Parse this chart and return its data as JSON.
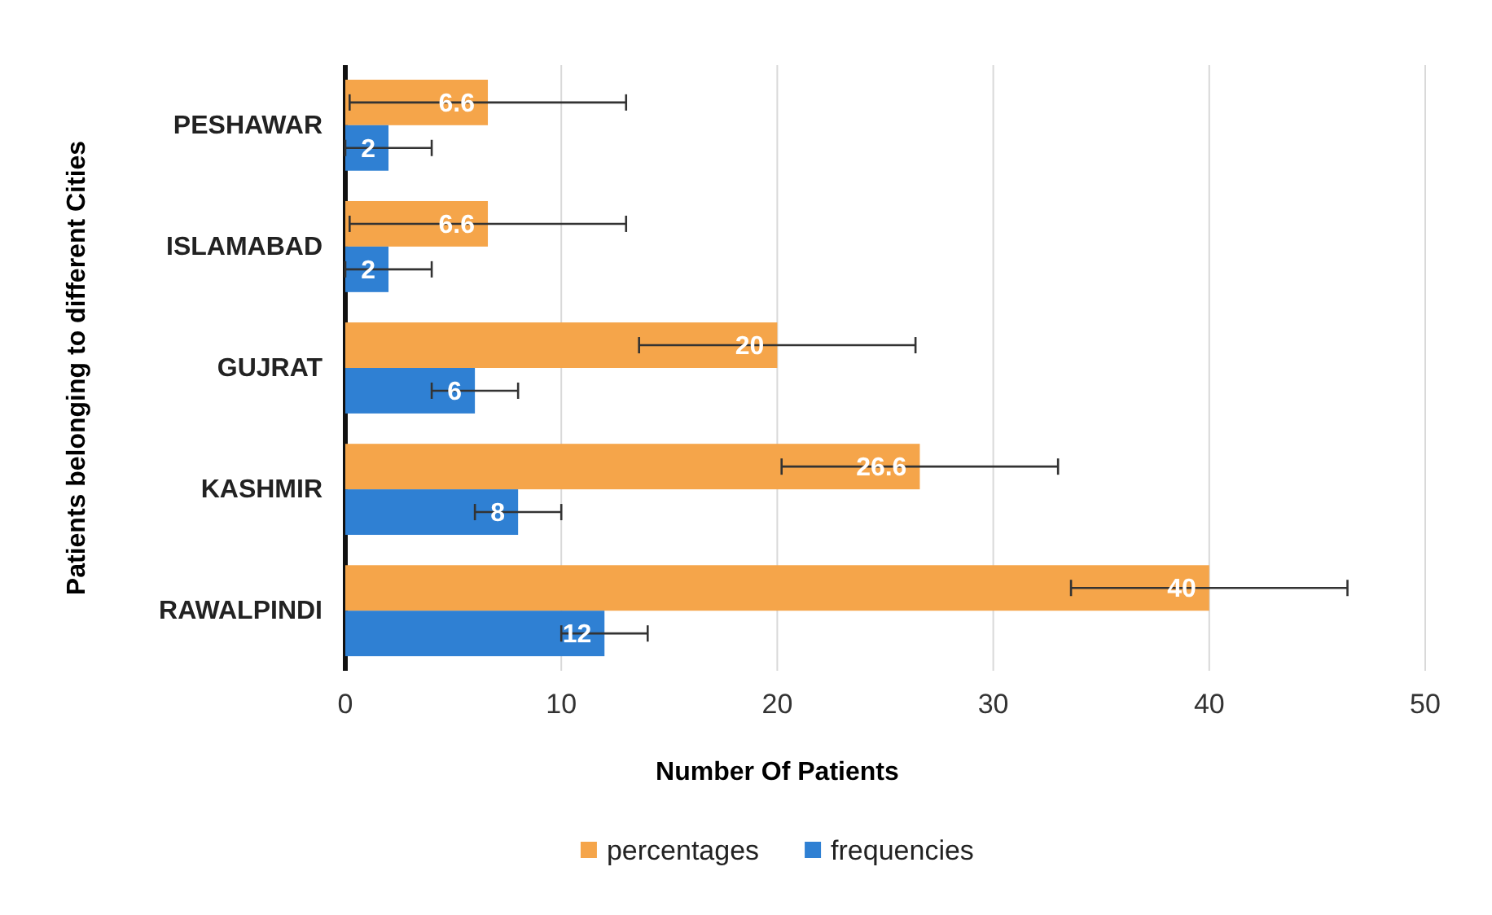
{
  "chart_data": {
    "type": "bar",
    "orientation": "horizontal",
    "xlabel": "Number Of Patients",
    "ylabel": "Patients belonging to different Cities",
    "categories": [
      "PESHAWAR",
      "ISLAMABAD",
      "GUJRAT",
      "KASHMIR",
      "RAWALPINDI"
    ],
    "series": [
      {
        "name": "percentages",
        "color": "#f5a54a",
        "values": [
          6.6,
          6.6,
          20,
          26.6,
          40
        ],
        "errors": [
          6.4,
          6.4,
          6.4,
          6.4,
          6.4
        ]
      },
      {
        "name": "frequencies",
        "color": "#2f80d3",
        "values": [
          2,
          2,
          6,
          8,
          12
        ],
        "errors": [
          2,
          2,
          2,
          2,
          2
        ]
      }
    ],
    "xlim": [
      0,
      50
    ],
    "xticks": [
      0,
      10,
      20,
      30,
      40,
      50
    ],
    "grid": "x",
    "legend": "bottom",
    "data_labels": true
  }
}
